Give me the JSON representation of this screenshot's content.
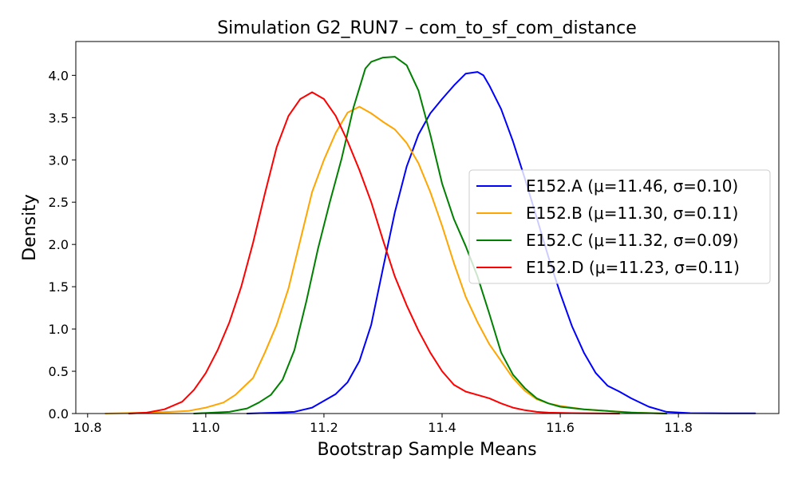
{
  "chart_data": {
    "type": "line",
    "title": "Simulation G2_RUN7 – com_to_sf_com_distance",
    "xlabel": "Bootstrap Sample Means",
    "ylabel": "Density",
    "xlim": [
      10.78,
      11.97
    ],
    "ylim": [
      0.0,
      4.4
    ],
    "xticks": [
      10.8,
      11.0,
      11.2,
      11.4,
      11.6,
      11.8
    ],
    "xtick_labels": [
      "10.8",
      "11.0",
      "11.2",
      "11.4",
      "11.6",
      "11.8"
    ],
    "yticks": [
      0.0,
      0.5,
      1.0,
      1.5,
      2.0,
      2.5,
      3.0,
      3.5,
      4.0
    ],
    "ytick_labels": [
      "0.0",
      "0.5",
      "1.0",
      "1.5",
      "2.0",
      "2.5",
      "3.0",
      "3.5",
      "4.0"
    ],
    "grid": false,
    "legend_position": "center-right",
    "series": [
      {
        "name": "E152.A (μ=11.46, σ=0.10)",
        "color": "#0000ff",
        "x": [
          11.07,
          11.12,
          11.15,
          11.18,
          11.2,
          11.22,
          11.24,
          11.26,
          11.28,
          11.3,
          11.32,
          11.34,
          11.36,
          11.38,
          11.4,
          11.42,
          11.44,
          11.46,
          11.47,
          11.48,
          11.5,
          11.52,
          11.54,
          11.56,
          11.58,
          11.6,
          11.62,
          11.64,
          11.66,
          11.68,
          11.7,
          11.72,
          11.75,
          11.78,
          11.82,
          11.88,
          11.93
        ],
        "y": [
          0.0,
          0.01,
          0.02,
          0.07,
          0.15,
          0.23,
          0.37,
          0.62,
          1.05,
          1.72,
          2.38,
          2.92,
          3.3,
          3.55,
          3.72,
          3.88,
          4.02,
          4.04,
          4.0,
          3.88,
          3.6,
          3.22,
          2.78,
          2.32,
          1.85,
          1.42,
          1.03,
          0.72,
          0.48,
          0.33,
          0.26,
          0.18,
          0.08,
          0.02,
          0.005,
          0.003,
          0.002
        ]
      },
      {
        "name": "E152.B (μ=11.30, σ=0.11)",
        "color": "#ffa500",
        "x": [
          10.83,
          10.9,
          10.94,
          10.97,
          11.0,
          11.03,
          11.05,
          11.08,
          11.1,
          11.12,
          11.14,
          11.16,
          11.18,
          11.2,
          11.22,
          11.24,
          11.26,
          11.28,
          11.3,
          11.32,
          11.34,
          11.36,
          11.38,
          11.4,
          11.42,
          11.44,
          11.46,
          11.48,
          11.5,
          11.52,
          11.54,
          11.56,
          11.58,
          11.6,
          11.64,
          11.68,
          11.73,
          11.78
        ],
        "y": [
          0.0,
          0.01,
          0.02,
          0.03,
          0.07,
          0.13,
          0.22,
          0.42,
          0.72,
          1.05,
          1.48,
          2.05,
          2.62,
          3.0,
          3.32,
          3.56,
          3.63,
          3.55,
          3.45,
          3.36,
          3.2,
          2.96,
          2.62,
          2.22,
          1.78,
          1.38,
          1.08,
          0.82,
          0.62,
          0.42,
          0.27,
          0.17,
          0.12,
          0.09,
          0.05,
          0.03,
          0.01,
          0.0
        ]
      },
      {
        "name": "E152.C (μ=11.32, σ=0.09)",
        "color": "#008000",
        "x": [
          10.98,
          11.04,
          11.07,
          11.09,
          11.11,
          11.13,
          11.15,
          11.17,
          11.19,
          11.21,
          11.23,
          11.25,
          11.27,
          11.28,
          11.3,
          11.32,
          11.34,
          11.36,
          11.38,
          11.4,
          11.42,
          11.44,
          11.46,
          11.48,
          11.5,
          11.52,
          11.54,
          11.56,
          11.58,
          11.6,
          11.64,
          11.68,
          11.72,
          11.78
        ],
        "y": [
          0.0,
          0.02,
          0.06,
          0.13,
          0.22,
          0.4,
          0.75,
          1.32,
          1.95,
          2.5,
          3.02,
          3.62,
          4.08,
          4.16,
          4.21,
          4.22,
          4.12,
          3.82,
          3.3,
          2.72,
          2.3,
          1.98,
          1.62,
          1.18,
          0.72,
          0.46,
          0.3,
          0.18,
          0.12,
          0.08,
          0.05,
          0.03,
          0.01,
          0.0
        ]
      },
      {
        "name": "E152.D (μ=11.23, σ=0.11)",
        "color": "#ff0000",
        "x": [
          10.87,
          10.9,
          10.93,
          10.96,
          10.98,
          11.0,
          11.02,
          11.04,
          11.06,
          11.08,
          11.1,
          11.12,
          11.14,
          11.16,
          11.18,
          11.2,
          11.22,
          11.24,
          11.26,
          11.28,
          11.3,
          11.32,
          11.34,
          11.36,
          11.38,
          11.4,
          11.42,
          11.44,
          11.46,
          11.48,
          11.5,
          11.52,
          11.54,
          11.56,
          11.58,
          11.62,
          11.66,
          11.7
        ],
        "y": [
          0.0,
          0.01,
          0.05,
          0.14,
          0.28,
          0.48,
          0.75,
          1.08,
          1.5,
          2.02,
          2.6,
          3.15,
          3.52,
          3.72,
          3.8,
          3.72,
          3.52,
          3.22,
          2.88,
          2.5,
          2.05,
          1.62,
          1.28,
          0.98,
          0.72,
          0.5,
          0.34,
          0.26,
          0.22,
          0.18,
          0.12,
          0.07,
          0.04,
          0.02,
          0.01,
          0.005,
          0.002,
          0.0
        ]
      }
    ]
  }
}
